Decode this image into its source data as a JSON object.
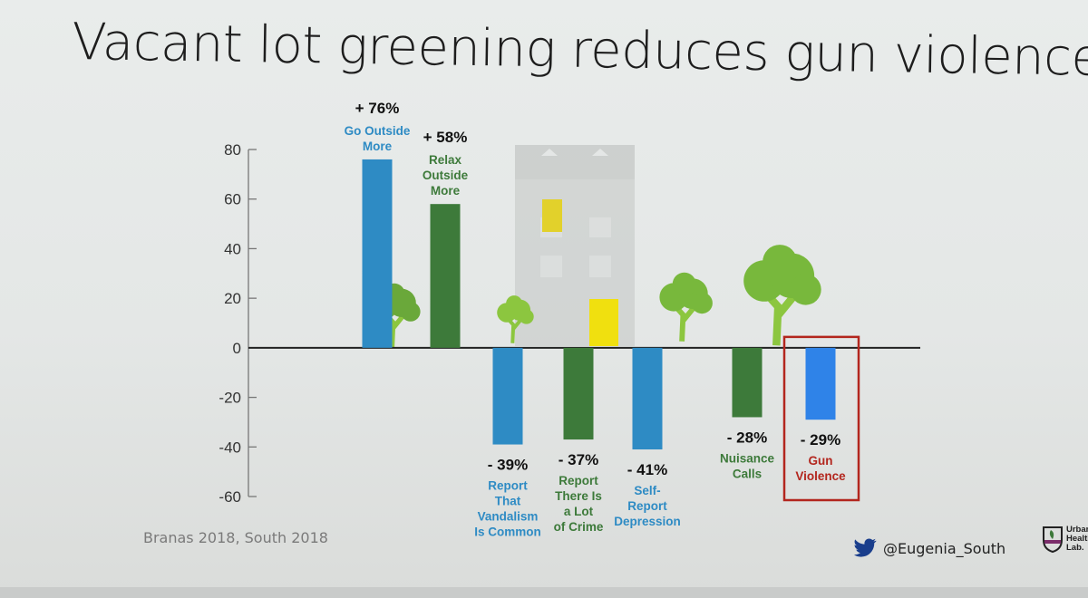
{
  "slide": {
    "title": "Vacant lot greening reduces gun violence",
    "citation": "Branas 2018, South 2018",
    "twitter_handle": "@Eugenia_South",
    "logo_text": [
      "Urban",
      "Health",
      "Lab."
    ]
  },
  "chart_data": {
    "type": "bar",
    "title": "",
    "xlabel": "",
    "ylabel": "",
    "ylim": [
      -60,
      80
    ],
    "yticks": [
      80,
      60,
      40,
      20,
      0,
      -20,
      -40,
      -60
    ],
    "grid": false,
    "categories": [
      "Go Outside More",
      "Relax Outside More",
      "Report That Vandalism Is Common",
      "Report There Is a Lot of Crime",
      "Self-Report Depression",
      "Nuisance Calls",
      "Gun Violence"
    ],
    "category_lines": [
      [
        "Go Outside",
        "More"
      ],
      [
        "Relax",
        "Outside",
        "More"
      ],
      [
        "Report",
        "That",
        "Vandalism",
        "Is Common"
      ],
      [
        "Report",
        "There Is",
        "a Lot",
        "of Crime"
      ],
      [
        "Self-",
        "Report",
        "Depression"
      ],
      [
        "Nuisance",
        "Calls"
      ],
      [
        "Gun",
        "Violence"
      ]
    ],
    "values": [
      76,
      58,
      -39,
      -37,
      -41,
      -28,
      -29
    ],
    "value_labels": [
      "+ 76%",
      "+ 58%",
      "- 39%",
      "- 37%",
      "- 41%",
      "- 28%",
      "- 29%"
    ],
    "bar_colors": [
      "#2e8bc4",
      "#3d7a3a",
      "#2e8bc4",
      "#3d7a3a",
      "#2e8bc4",
      "#3d7a3a",
      "#2f83e8"
    ],
    "label_colors": [
      "#2e8bc4",
      "#3d7a3a",
      "#2e8bc4",
      "#3d7a3a",
      "#2e8bc4",
      "#3d7a3a",
      "#b3261e"
    ],
    "highlight": "Gun Violence",
    "highlight_color": "#b3261e"
  }
}
